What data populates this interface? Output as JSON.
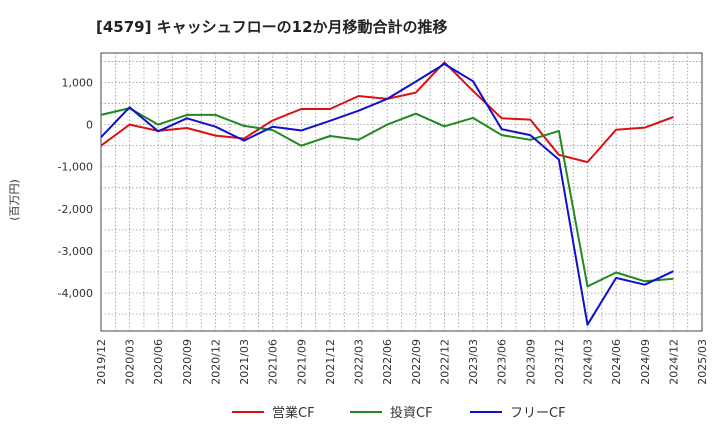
{
  "chart_data": {
    "type": "line",
    "title": "[4579]  キャッシュフローの12か月移動合計の推移",
    "ylabel": "(百万円)",
    "xlabel": "",
    "ylim": [
      -4900,
      1700
    ],
    "yticks": [
      1000,
      0,
      -1000,
      -2000,
      -3000,
      -4000
    ],
    "ytick_labels": [
      "1,000",
      "0",
      "-1,000",
      "-2,000",
      "-3,000",
      "-4,000"
    ],
    "categories": [
      "2019/12",
      "2020/03",
      "2020/06",
      "2020/09",
      "2020/12",
      "2021/03",
      "2021/06",
      "2021/09",
      "2021/12",
      "2022/03",
      "2022/06",
      "2022/09",
      "2022/12",
      "2023/03",
      "2023/06",
      "2023/09",
      "2023/12",
      "2024/03",
      "2024/06",
      "2024/09",
      "2024/12",
      "2025/03"
    ],
    "grid": true,
    "legend_position": "bottom",
    "series": [
      {
        "name": "営業CF",
        "color": "#dd1111",
        "values": [
          -500,
          0,
          -150,
          -80,
          -260,
          -330,
          100,
          370,
          370,
          680,
          610,
          760,
          1480,
          800,
          150,
          120,
          -720,
          -890,
          -120,
          -70,
          180,
          null
        ]
      },
      {
        "name": "投資CF",
        "color": "#228822",
        "values": [
          230,
          390,
          0,
          230,
          230,
          -30,
          -130,
          -500,
          -270,
          -360,
          0,
          260,
          -40,
          160,
          -250,
          -360,
          -150,
          -3840,
          -3510,
          -3720,
          -3660,
          null
        ]
      },
      {
        "name": "フリーCF",
        "color": "#1111cc",
        "values": [
          -300,
          410,
          -160,
          150,
          -50,
          -380,
          -50,
          -140,
          90,
          330,
          610,
          1020,
          1440,
          1030,
          -110,
          -250,
          -830,
          -4750,
          -3640,
          -3800,
          -3480,
          null
        ]
      }
    ]
  }
}
